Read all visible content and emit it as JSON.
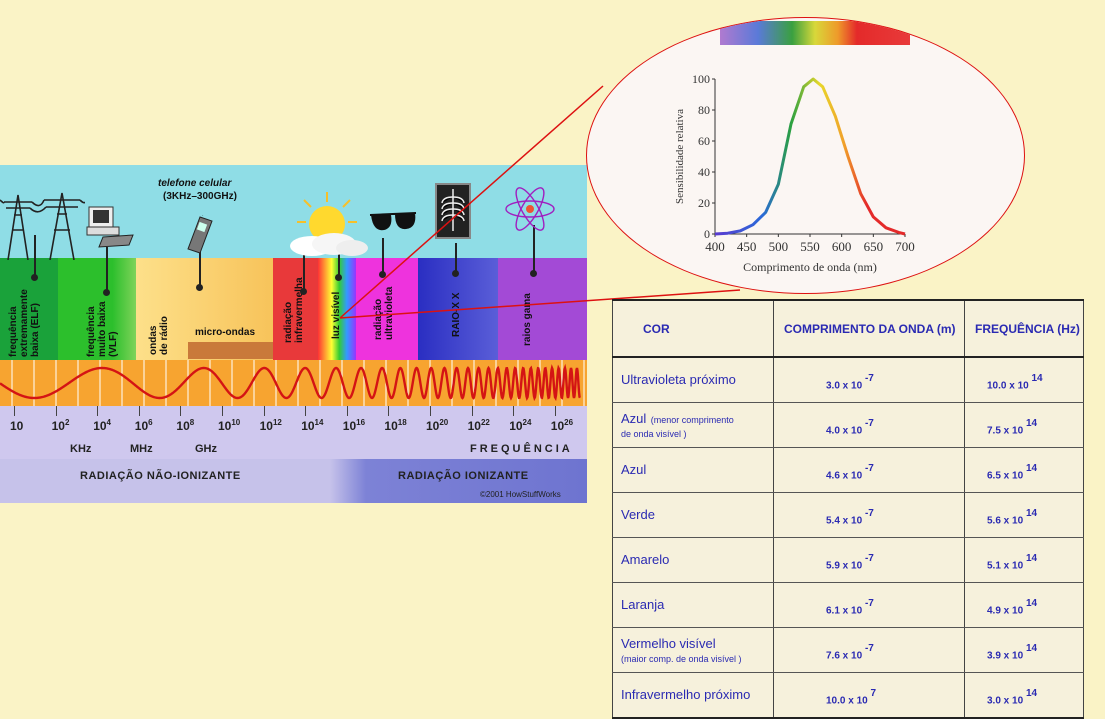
{
  "spectrum": {
    "phone_title": "telefone celular",
    "phone_range": "(3KHz–300GHz)",
    "bands": [
      {
        "key": "elf",
        "label": "frequência\nextremamente\nbaixa (ELF)",
        "color": "#1aa23a"
      },
      {
        "key": "vlf",
        "label": "frequência\nmuito baixa\n(VLF)",
        "color": "#2cbf2c"
      },
      {
        "key": "radio",
        "label": "ondas\nde rádio",
        "color": "#fbd57a"
      },
      {
        "key": "micro",
        "label": "micro-ondas",
        "color": "#c9793a"
      },
      {
        "key": "ir",
        "label": "radiação\ninfravermelha",
        "color": "#e8393a"
      },
      {
        "key": "visible",
        "label": "luz visível",
        "color": "#ffff66"
      },
      {
        "key": "uv",
        "label": "radiação\nultravioleta",
        "color": "#ee33dd"
      },
      {
        "key": "xray",
        "label": "RAIO-X X",
        "color": "#3c40c8"
      },
      {
        "key": "gamma",
        "label": "raios gama",
        "color": "#a34ad6"
      }
    ],
    "ticks": [
      {
        "base": "10",
        "exp": ""
      },
      {
        "base": "10",
        "exp": "2"
      },
      {
        "base": "10",
        "exp": "4"
      },
      {
        "base": "10",
        "exp": "6"
      },
      {
        "base": "10",
        "exp": "8"
      },
      {
        "base": "10",
        "exp": "10"
      },
      {
        "base": "10",
        "exp": "12"
      },
      {
        "base": "10",
        "exp": "14"
      },
      {
        "base": "10",
        "exp": "16"
      },
      {
        "base": "10",
        "exp": "18"
      },
      {
        "base": "10",
        "exp": "20"
      },
      {
        "base": "10",
        "exp": "22"
      },
      {
        "base": "10",
        "exp": "24"
      },
      {
        "base": "10",
        "exp": "26"
      }
    ],
    "units": [
      "KHz",
      "MHz",
      "GHz"
    ],
    "frequency_label": "FREQUÊNCIA",
    "non_ionizing": "RADIAÇÃO NÃO-IONIZANTE",
    "ionizing": "RADIAÇÃO IONIZANTE",
    "credit": "©2001 HowStuffWorks",
    "icons": [
      "power-tower-icon",
      "computer-icon",
      "cell-phone-icon",
      "sun-icon",
      "sunglasses-icon",
      "x-ray-icon",
      "atom-icon"
    ]
  },
  "chart_data": {
    "type": "line",
    "xlabel": "Comprimento de onda (nm)",
    "ylabel": "Sensibilidade relativa",
    "xlim": [
      400,
      700
    ],
    "ylim": [
      0,
      100
    ],
    "x_ticks": [
      "400",
      "450",
      "500",
      "550",
      "600",
      "650",
      "700"
    ],
    "y_ticks": [
      "0",
      "20",
      "40",
      "60",
      "80",
      "100"
    ],
    "series": [
      {
        "x": [
          400,
          420,
          440,
          460,
          480,
          500,
          520,
          540,
          555,
          570,
          590,
          610,
          630,
          650,
          670,
          690,
          700
        ],
        "y": [
          0,
          0.5,
          2,
          6,
          14,
          32,
          71,
          95,
          100,
          95,
          76,
          50,
          26,
          11,
          4,
          1,
          0
        ]
      }
    ]
  },
  "table": {
    "headers": [
      "COR",
      "COMPRIMENTO  DA ONDA (m)",
      "FREQUÊNCIA (Hz)"
    ],
    "rows": [
      {
        "name": "Ultravioleta próximo",
        "note": "",
        "wl": "3.0 x 10",
        "wl_exp": "-7",
        "fr": "10.0 x 10",
        "fr_exp": "14"
      },
      {
        "name": "Azul",
        "note_inline": "(menor comprimento",
        "note": "de onda visível )",
        "wl": "4.0 x 10",
        "wl_exp": "-7",
        "fr": "7.5 x 10",
        "fr_exp": "14"
      },
      {
        "name": "Azul",
        "note": "",
        "wl": "4.6 x 10",
        "wl_exp": "-7",
        "fr": "6.5 x 10",
        "fr_exp": "14"
      },
      {
        "name": "Verde",
        "note": "",
        "wl": "5.4 x 10",
        "wl_exp": "-7",
        "fr": "5.6 x 10",
        "fr_exp": "14"
      },
      {
        "name": "Amarelo",
        "note": "",
        "wl": "5.9 x 10",
        "wl_exp": "-7",
        "fr": "5.1 x 10",
        "fr_exp": "14"
      },
      {
        "name": "Laranja",
        "note": "",
        "wl": "6.1 x 10",
        "wl_exp": "-7",
        "fr": "4.9 x 10",
        "fr_exp": "14"
      },
      {
        "name": "Vermelho visível",
        "note": "(maior comp. de onda visível )",
        "wl": "7.6 x 10",
        "wl_exp": "-7",
        "fr": "3.9 x 10",
        "fr_exp": "14"
      },
      {
        "name": "Infravermelho próximo",
        "note": "",
        "wl": "10.0 x 10",
        "wl_exp": "7",
        "fr": "3.0 x 10",
        "fr_exp": "14"
      }
    ]
  },
  "colors": {
    "accent": "#2a2ab2",
    "connector": "#dd1111",
    "background": "#faf3c6"
  }
}
